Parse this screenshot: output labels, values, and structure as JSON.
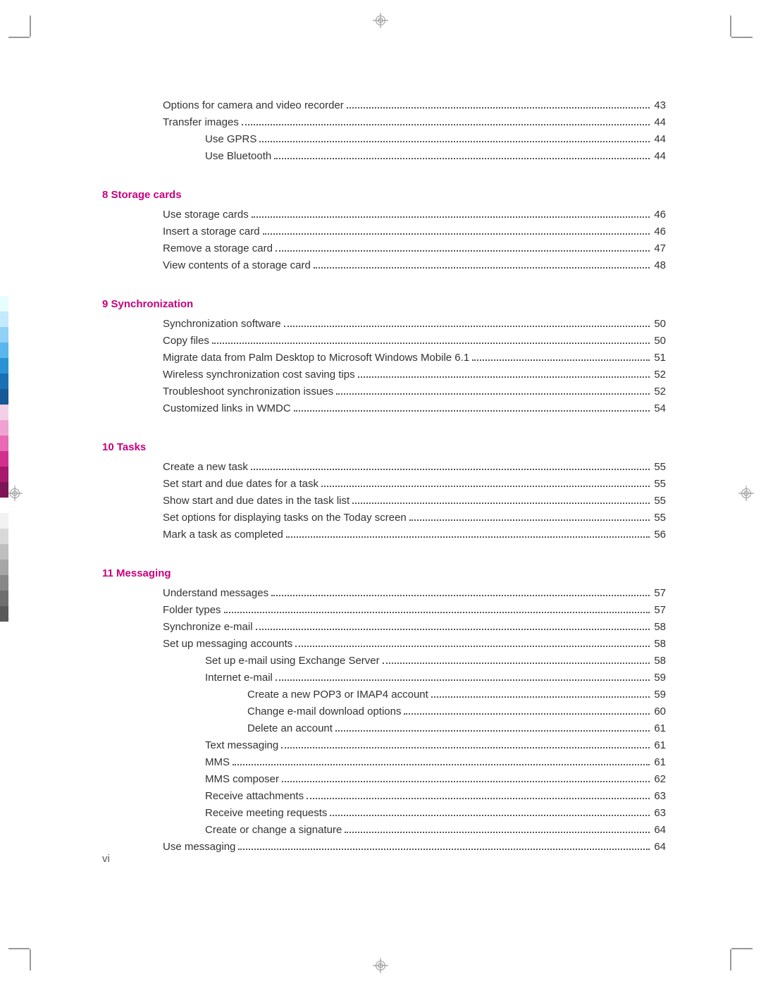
{
  "colors": {
    "heading": "#c6007e",
    "text": "#333333",
    "pagenum": "#555555",
    "crop": "#999999"
  },
  "colorBar": [
    "#e8fdff",
    "#c3eafd",
    "#90d1f7",
    "#5ab7ed",
    "#2a93d6",
    "#1a70b5",
    "#175896",
    "#f3d0e8",
    "#f0a3d2",
    "#e969b4",
    "#d2308f",
    "#a7186e",
    "#7e1457",
    "#ffffff",
    "#f2f2f2",
    "#d9d9d9",
    "#bfbfbf",
    "#a6a6a6",
    "#888888",
    "#6f6f6f",
    "#595959"
  ],
  "orphanEntries": [
    {
      "title": "Options for camera and video recorder",
      "page": "43",
      "indent": 0
    },
    {
      "title": "Transfer images",
      "page": "44",
      "indent": 0
    },
    {
      "title": "Use GPRS",
      "page": "44",
      "indent": 1
    },
    {
      "title": "Use Bluetooth",
      "page": "44",
      "indent": 1
    }
  ],
  "sections": [
    {
      "number": "8",
      "title": "Storage cards",
      "entries": [
        {
          "title": "Use storage cards",
          "page": "46",
          "indent": 0
        },
        {
          "title": "Insert a storage card",
          "page": "46",
          "indent": 0
        },
        {
          "title": "Remove a storage card",
          "page": "47",
          "indent": 0
        },
        {
          "title": "View contents of a storage card",
          "page": "48",
          "indent": 0
        }
      ]
    },
    {
      "number": "9",
      "title": "Synchronization",
      "entries": [
        {
          "title": "Synchronization software",
          "page": "50",
          "indent": 0
        },
        {
          "title": "Copy files",
          "page": "50",
          "indent": 0
        },
        {
          "title": "Migrate data from Palm Desktop to Microsoft Windows Mobile 6.1",
          "page": "51",
          "indent": 0
        },
        {
          "title": "Wireless synchronization cost saving tips",
          "page": "52",
          "indent": 0
        },
        {
          "title": "Troubleshoot synchronization issues",
          "page": "52",
          "indent": 0
        },
        {
          "title": "Customized links in WMDC",
          "page": "54",
          "indent": 0
        }
      ]
    },
    {
      "number": "10",
      "title": "Tasks",
      "entries": [
        {
          "title": "Create a new task",
          "page": "55",
          "indent": 0
        },
        {
          "title": "Set start and due dates for a task",
          "page": "55",
          "indent": 0
        },
        {
          "title": "Show start and due dates in the task list",
          "page": "55",
          "indent": 0
        },
        {
          "title": "Set options for displaying tasks on the Today screen",
          "page": "55",
          "indent": 0
        },
        {
          "title": "Mark a task as completed",
          "page": "56",
          "indent": 0
        }
      ]
    },
    {
      "number": "11",
      "title": "Messaging",
      "entries": [
        {
          "title": "Understand messages",
          "page": "57",
          "indent": 0
        },
        {
          "title": "Folder types",
          "page": "57",
          "indent": 0
        },
        {
          "title": "Synchronize e-mail",
          "page": "58",
          "indent": 0
        },
        {
          "title": "Set up messaging accounts",
          "page": "58",
          "indent": 0
        },
        {
          "title": "Set up e-mail using Exchange Server",
          "page": "58",
          "indent": 1
        },
        {
          "title": "Internet e-mail",
          "page": "59",
          "indent": 1
        },
        {
          "title": "Create a new POP3 or IMAP4 account",
          "page": "59",
          "indent": 2
        },
        {
          "title": "Change e-mail download options",
          "page": "60",
          "indent": 2
        },
        {
          "title": "Delete an account",
          "page": "61",
          "indent": 2
        },
        {
          "title": "Text messaging",
          "page": "61",
          "indent": 1
        },
        {
          "title": "MMS",
          "page": "61",
          "indent": 1
        },
        {
          "title": "MMS composer",
          "page": "62",
          "indent": 1
        },
        {
          "title": "Receive attachments",
          "page": "63",
          "indent": 1
        },
        {
          "title": "Receive meeting requests",
          "page": "63",
          "indent": 1
        },
        {
          "title": "Create or change a signature",
          "page": "64",
          "indent": 1
        },
        {
          "title": "Use messaging",
          "page": "64",
          "indent": 0
        }
      ]
    }
  ],
  "pageNumber": "vi"
}
